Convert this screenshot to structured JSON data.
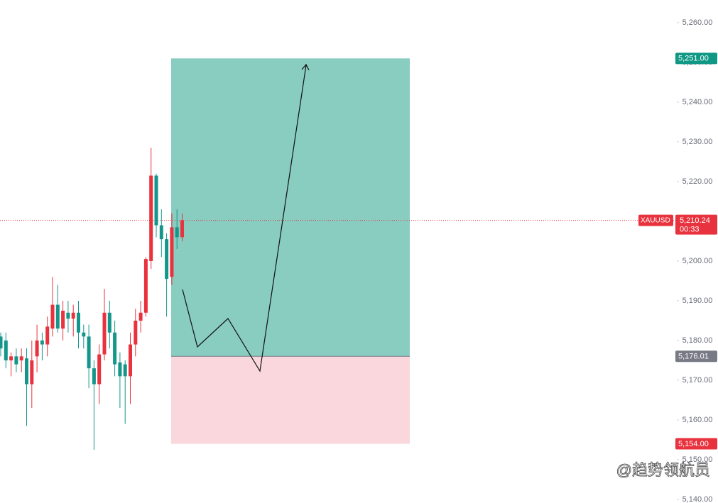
{
  "chart_data": {
    "type": "candlestick",
    "ylim": [
      5139.1,
      5265.7
    ],
    "yticks": [
      {
        "value": 5140,
        "label": "5,140.00"
      },
      {
        "value": 5150,
        "label": "5,150.00"
      },
      {
        "value": 5160,
        "label": "5,160.00"
      },
      {
        "value": 5170,
        "label": "5,170.00"
      },
      {
        "value": 5180,
        "label": "5,180.00"
      },
      {
        "value": 5190,
        "label": "5,190.00"
      },
      {
        "value": 5200,
        "label": "5,200.00"
      },
      {
        "value": 5210,
        "label": "5,210.00"
      },
      {
        "value": 5220,
        "label": "5,220.00"
      },
      {
        "value": 5230,
        "label": "5,230.00"
      },
      {
        "value": 5240,
        "label": "5,240.00"
      },
      {
        "value": 5250,
        "label": "5,250.00"
      },
      {
        "value": 5260,
        "label": "5,260.00"
      }
    ],
    "up_color": "#e8323e",
    "down_color": "#14978a",
    "open": [
      5181,
      5180,
      5175,
      5176,
      5175,
      5175.5,
      5169,
      5176,
      5180,
      5179,
      5183,
      5189,
      5183,
      5187,
      5185.5,
      5187,
      5182,
      5181,
      5173,
      5169,
      5176.5,
      5187,
      5182,
      5174.5,
      5174,
      5171,
      5179,
      5185,
      5187,
      5200,
      5221.5,
      5209,
      5205.5,
      5196,
      5208.5,
      5206
    ],
    "high": [
      5182,
      5182,
      5177,
      5178,
      5178,
      5178,
      5180,
      5184,
      5182,
      5186,
      5196,
      5194,
      5190,
      5190,
      5189,
      5190,
      5184,
      5184,
      5175,
      5179,
      5193,
      5190,
      5185,
      5177,
      5175,
      5182,
      5188,
      5190,
      5201,
      5228.5,
      5222,
      5213,
      5207,
      5212,
      5213,
      5212
    ],
    "low": [
      5176,
      5173,
      5171,
      5172,
      5172,
      5158.5,
      5163,
      5172,
      5175,
      5176,
      5181,
      5182,
      5180,
      5182,
      5181,
      5178,
      5178,
      5168,
      5152.5,
      5164,
      5175,
      5178,
      5171,
      5163,
      5159,
      5164,
      5176,
      5182,
      5186,
      5198,
      5206,
      5201,
      5186,
      5194,
      5203,
      5205
    ],
    "close": [
      5178,
      5175,
      5176,
      5174,
      5176,
      5169,
      5175,
      5180,
      5179,
      5183.5,
      5189,
      5183,
      5187.5,
      5185.5,
      5187,
      5182,
      5181,
      5173,
      5169,
      5176.5,
      5187,
      5182,
      5174,
      5171,
      5171,
      5179,
      5185,
      5187,
      5200.5,
      5221.5,
      5209,
      5205.5,
      5195.5,
      5208.5,
      5206,
      5210.24
    ],
    "position": {
      "target": {
        "value": 5251,
        "label": "5,251.00",
        "color": "#0f9884"
      },
      "entry": {
        "value": 5176.01,
        "label": "5,176.01",
        "color": "#787b86"
      },
      "stop": {
        "value": 5154,
        "label": "5,154.00",
        "color": "#e8323e"
      },
      "profit_fill": "#89ccc0",
      "loss_fill": "#fad7dc"
    },
    "last_price": {
      "value": 5210.24,
      "label": "5,210.24",
      "color": "#e8323e"
    },
    "symbol": "XAUUSD",
    "countdown": "00:33",
    "watermark": "@趋势领航员"
  }
}
